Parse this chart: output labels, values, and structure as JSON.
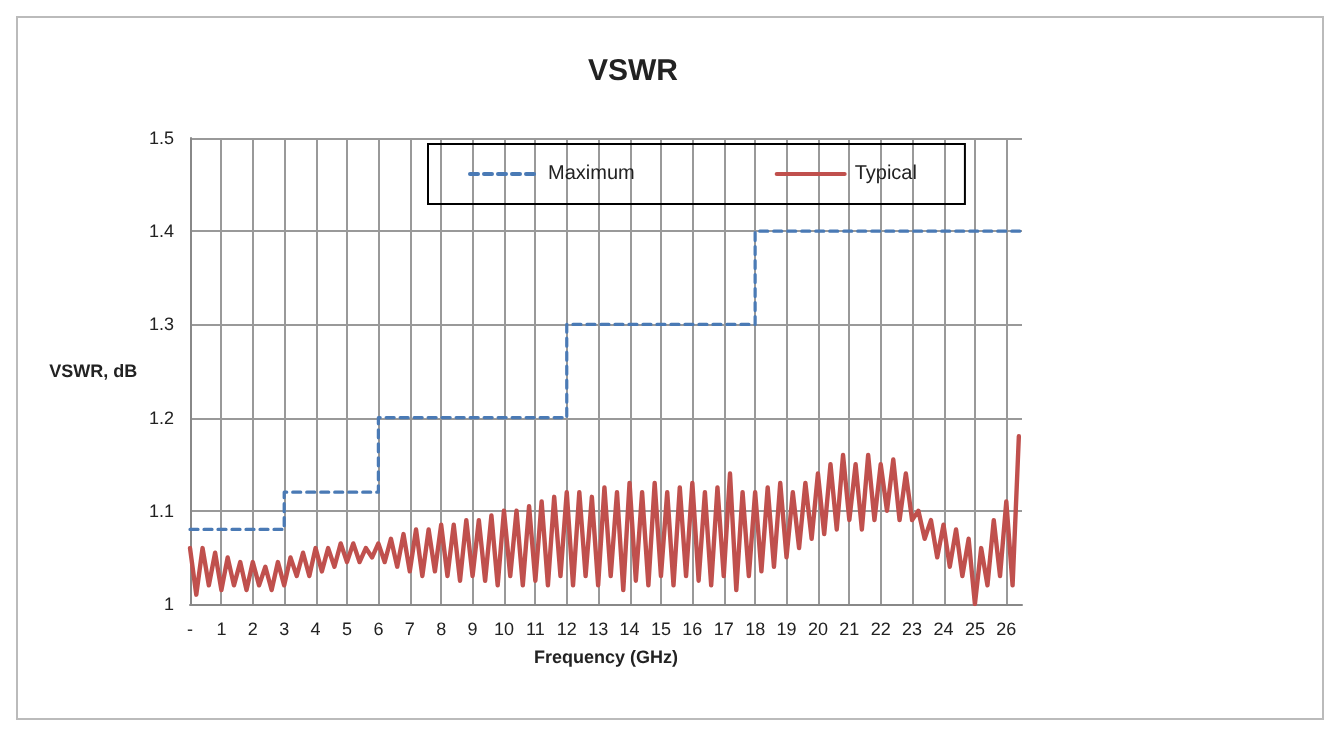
{
  "chart_data": {
    "type": "line",
    "title": "VSWR",
    "xlabel": "Frequency (GHz)",
    "ylabel": "VSWR, dB",
    "xlim": [
      0,
      26.5
    ],
    "xticks": [
      {
        "value": 0,
        "label": "-"
      },
      1,
      2,
      3,
      4,
      5,
      6,
      7,
      8,
      9,
      10,
      11,
      12,
      13,
      14,
      15,
      16,
      17,
      18,
      19,
      20,
      21,
      22,
      23,
      24,
      25,
      26
    ],
    "ylim": [
      1,
      1.5
    ],
    "yticks": [
      1,
      1.1,
      1.2,
      1.3,
      1.4,
      1.5
    ],
    "grid": true,
    "legend": "top",
    "marker": "none",
    "series": [
      {
        "name": "Maximum",
        "type": "step",
        "color": "#4a7ab5",
        "line_style": "dashed",
        "x": [
          0,
          3,
          6,
          12,
          18,
          26.5
        ],
        "values": [
          1.08,
          1.12,
          1.2,
          1.3,
          1.4,
          1.4
        ]
      },
      {
        "name": "Typical",
        "color": "#c0504d",
        "line_style": "solid",
        "x": [
          0,
          0.2,
          0.4,
          0.6,
          0.8,
          1,
          1.2,
          1.4,
          1.6,
          1.8,
          2,
          2.2,
          2.4,
          2.6,
          2.8,
          3,
          3.2,
          3.4,
          3.6,
          3.8,
          4,
          4.2,
          4.4,
          4.6,
          4.8,
          5,
          5.2,
          5.4,
          5.6,
          5.8,
          6,
          6.2,
          6.4,
          6.6,
          6.8,
          7,
          7.2,
          7.4,
          7.6,
          7.8,
          8,
          8.2,
          8.4,
          8.6,
          8.8,
          9,
          9.2,
          9.4,
          9.6,
          9.8,
          10,
          10.2,
          10.4,
          10.6,
          10.8,
          11,
          11.2,
          11.4,
          11.6,
          11.8,
          12,
          12.2,
          12.4,
          12.6,
          12.8,
          13,
          13.2,
          13.4,
          13.6,
          13.8,
          14,
          14.2,
          14.4,
          14.6,
          14.8,
          15,
          15.2,
          15.4,
          15.6,
          15.8,
          16,
          16.2,
          16.4,
          16.6,
          16.8,
          17,
          17.2,
          17.4,
          17.6,
          17.8,
          18,
          18.2,
          18.4,
          18.6,
          18.8,
          19,
          19.2,
          19.4,
          19.6,
          19.8,
          20,
          20.2,
          20.4,
          20.6,
          20.8,
          21,
          21.2,
          21.4,
          21.6,
          21.8,
          22,
          22.2,
          22.4,
          22.6,
          22.8,
          23,
          23.2,
          23.4,
          23.6,
          23.8,
          24,
          24.2,
          24.4,
          24.6,
          24.8,
          25,
          25.2,
          25.4,
          25.6,
          25.8,
          26,
          26.2,
          26.4
        ],
        "values": [
          1.06,
          1.01,
          1.06,
          1.02,
          1.055,
          1.015,
          1.05,
          1.02,
          1.045,
          1.015,
          1.045,
          1.02,
          1.04,
          1.015,
          1.045,
          1.02,
          1.05,
          1.03,
          1.055,
          1.03,
          1.06,
          1.035,
          1.06,
          1.04,
          1.065,
          1.045,
          1.065,
          1.045,
          1.06,
          1.05,
          1.065,
          1.045,
          1.07,
          1.04,
          1.075,
          1.035,
          1.08,
          1.03,
          1.08,
          1.035,
          1.085,
          1.03,
          1.085,
          1.025,
          1.09,
          1.03,
          1.09,
          1.025,
          1.095,
          1.02,
          1.1,
          1.03,
          1.1,
          1.02,
          1.105,
          1.025,
          1.11,
          1.02,
          1.115,
          1.03,
          1.12,
          1.02,
          1.12,
          1.03,
          1.115,
          1.02,
          1.125,
          1.03,
          1.12,
          1.015,
          1.13,
          1.025,
          1.12,
          1.02,
          1.13,
          1.03,
          1.12,
          1.02,
          1.125,
          1.03,
          1.13,
          1.025,
          1.12,
          1.02,
          1.125,
          1.03,
          1.14,
          1.015,
          1.12,
          1.03,
          1.12,
          1.035,
          1.125,
          1.04,
          1.13,
          1.05,
          1.12,
          1.06,
          1.13,
          1.07,
          1.14,
          1.075,
          1.15,
          1.08,
          1.16,
          1.09,
          1.15,
          1.08,
          1.16,
          1.09,
          1.15,
          1.1,
          1.155,
          1.09,
          1.14,
          1.09,
          1.1,
          1.07,
          1.09,
          1.05,
          1.085,
          1.04,
          1.08,
          1.03,
          1.07,
          1.0,
          1.06,
          1.02,
          1.09,
          1.03,
          1.11,
          1.02,
          1.18
        ]
      }
    ]
  }
}
